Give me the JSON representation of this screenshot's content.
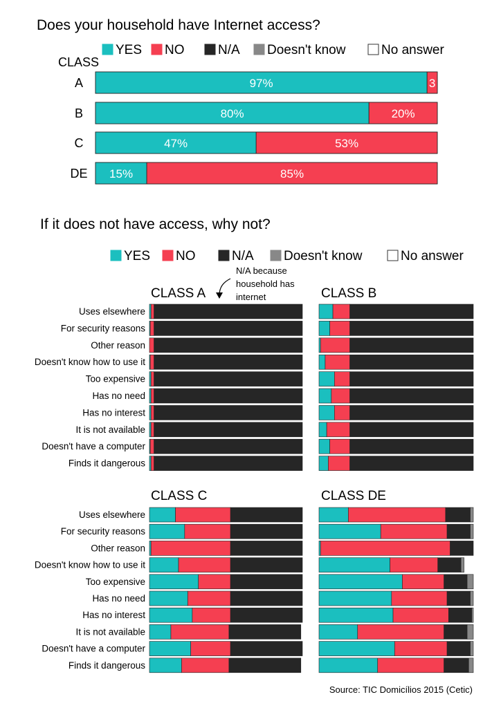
{
  "colors": {
    "yes": "#1bbfbf",
    "no": "#f53f51",
    "na": "#262626",
    "dont_know": "#888888",
    "no_answer": "#ffffff"
  },
  "legend": [
    {
      "key": "yes",
      "label": "YES"
    },
    {
      "key": "no",
      "label": "NO"
    },
    {
      "key": "na",
      "label": "N/A"
    },
    {
      "key": "dont_know",
      "label": "Doesn't know"
    },
    {
      "key": "no_answer",
      "label": "No answer"
    }
  ],
  "chart_data": [
    {
      "type": "bar",
      "orientation": "horizontal",
      "stacked": true,
      "title": "Does your household have Internet access?",
      "ylabel": "CLASS",
      "categories": [
        "A",
        "B",
        "C",
        "DE"
      ],
      "series": [
        {
          "name": "YES",
          "color": "#1bbfbf",
          "values": [
            97,
            80,
            47,
            15
          ],
          "labels": [
            "97%",
            "80%",
            "47%",
            "15%"
          ]
        },
        {
          "name": "NO",
          "color": "#f53f51",
          "values": [
            3,
            20,
            53,
            85
          ],
          "labels": [
            "3",
            "20%",
            "53%",
            "85%"
          ]
        },
        {
          "name": "N/A",
          "color": "#262626",
          "values": [
            0,
            0,
            0,
            0
          ]
        },
        {
          "name": "Doesn't know",
          "color": "#888888",
          "values": [
            0,
            0,
            0,
            0
          ]
        },
        {
          "name": "No answer",
          "color": "#ffffff",
          "values": [
            0,
            0,
            0,
            0
          ]
        }
      ],
      "xlim": [
        0,
        100
      ]
    },
    {
      "type": "bar",
      "orientation": "horizontal",
      "stacked": true,
      "title": "If it does not have access, why not?",
      "annotation": "N/A because household has internet",
      "source": "Source: TIC Domicílios 2015 (Cetic)",
      "categories": [
        "Uses elsewhere",
        "For security reasons",
        "Other reason",
        "Doesn't know how to use it",
        "Too expensive",
        "Has no need",
        "Has no interest",
        "It is not available",
        "Doesn't have a computer",
        "Finds it dangerous"
      ],
      "panels": [
        {
          "name": "CLASS A",
          "series": [
            {
              "name": "YES",
              "values": [
                1,
                0.5,
                0,
                0.5,
                1,
                1,
                1,
                1,
                0.5,
                1
              ]
            },
            {
              "name": "NO",
              "values": [
                2,
                2.5,
                3,
                2.5,
                2,
                2,
                2,
                2,
                2.5,
                2
              ]
            },
            {
              "name": "N/A",
              "values": [
                97,
                97,
                97,
                97,
                97,
                97,
                97,
                97,
                97,
                97
              ]
            },
            {
              "name": "Doesn't know",
              "values": [
                0,
                0,
                0,
                0,
                0,
                0,
                0,
                0,
                0,
                0
              ]
            }
          ]
        },
        {
          "name": "CLASS B",
          "series": [
            {
              "name": "YES",
              "values": [
                9,
                7,
                1,
                4,
                10,
                8,
                10,
                5,
                7,
                6
              ]
            },
            {
              "name": "NO",
              "values": [
                11,
                13,
                19,
                16,
                10,
                12,
                10,
                15,
                13,
                14
              ]
            },
            {
              "name": "N/A",
              "values": [
                80,
                80,
                80,
                80,
                80,
                80,
                80,
                80,
                80,
                80
              ]
            },
            {
              "name": "Doesn't know",
              "values": [
                0,
                0,
                0,
                0,
                0,
                0,
                0,
                0,
                0,
                0
              ]
            }
          ]
        },
        {
          "name": "CLASS C",
          "series": [
            {
              "name": "YES",
              "values": [
                17,
                23,
                1,
                19,
                32,
                25,
                28,
                14,
                27,
                21
              ]
            },
            {
              "name": "NO",
              "values": [
                36,
                30,
                52,
                34,
                21,
                28,
                25,
                38,
                26,
                31
              ]
            },
            {
              "name": "N/A",
              "values": [
                47,
                47,
                47,
                47,
                47,
                47,
                47,
                47,
                47,
                47
              ]
            },
            {
              "name": "Doesn't know",
              "values": [
                0,
                0,
                0,
                0,
                0,
                0,
                0,
                0,
                0,
                0
              ]
            }
          ]
        },
        {
          "name": "CLASS DE",
          "series": [
            {
              "name": "YES",
              "values": [
                19,
                40,
                1,
                46,
                54,
                47,
                48,
                25,
                49,
                38
              ]
            },
            {
              "name": "NO",
              "values": [
                63,
                43,
                84,
                31,
                27,
                36,
                36,
                56,
                34,
                43
              ]
            },
            {
              "name": "N/A",
              "values": [
                16,
                15,
                15,
                15,
                15,
                15,
                15,
                15,
                15,
                16
              ]
            },
            {
              "name": "Doesn't know",
              "values": [
                2,
                2,
                0,
                2,
                4,
                2,
                1,
                4,
                2,
                3
              ]
            }
          ]
        }
      ],
      "xlim": [
        0,
        100
      ]
    }
  ]
}
